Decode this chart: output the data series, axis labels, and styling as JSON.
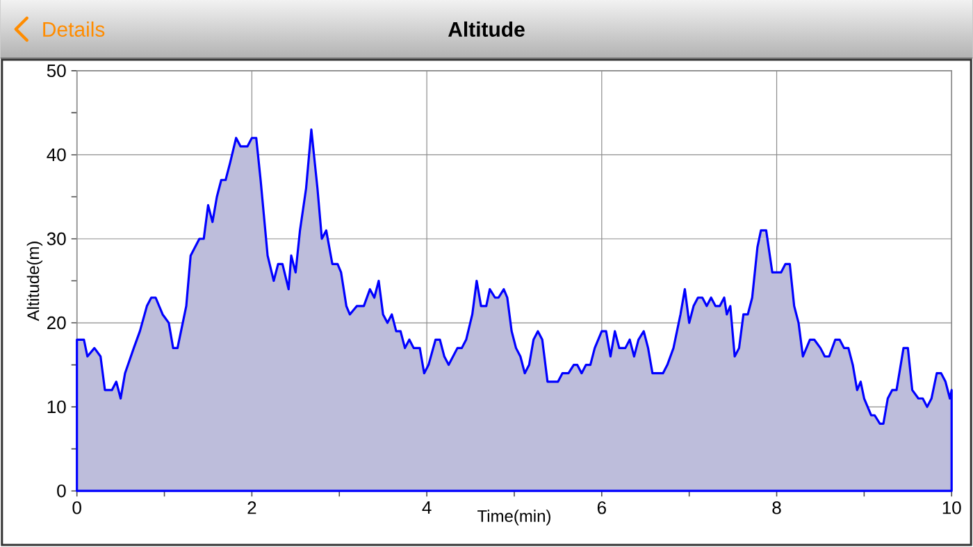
{
  "chart_data": {
    "type": "area",
    "title": "Altitude",
    "xlabel": "Time(min)",
    "ylabel": "Altitude(m)",
    "annotations": [
      "Details"
    ],
    "xlim": [
      0,
      10
    ],
    "ylim": [
      0,
      50
    ],
    "xticks": [
      0,
      {
        "value": 1,
        "label": null
      },
      2,
      {
        "value": 3,
        "label": null
      },
      4,
      {
        "value": 5,
        "label": null
      },
      6,
      {
        "value": 7,
        "label": null
      },
      8,
      {
        "value": 9,
        "label": null
      },
      10
    ],
    "yticks": [
      0,
      {
        "value": 5,
        "label": null
      },
      10,
      {
        "value": 15,
        "label": null
      },
      20,
      {
        "value": 25,
        "label": null
      },
      30,
      {
        "value": 35,
        "label": null
      },
      40,
      {
        "value": 45,
        "label": null
      },
      50
    ],
    "grid": true,
    "series": [
      {
        "color": "#0000ff",
        "x": [
          0,
          0.08,
          0.12,
          0.2,
          0.27,
          0.32,
          0.4,
          0.45,
          0.5,
          0.55,
          0.65,
          0.72,
          0.8,
          0.85,
          0.9,
          0.98,
          1.05,
          1.1,
          1.15,
          1.25,
          1.3,
          1.4,
          1.45,
          1.5,
          1.55,
          1.6,
          1.65,
          1.7,
          1.75,
          1.82,
          1.87,
          1.95,
          2.0,
          2.05,
          2.1,
          2.18,
          2.25,
          2.3,
          2.35,
          2.42,
          2.45,
          2.5,
          2.55,
          2.62,
          2.68,
          2.75,
          2.8,
          2.85,
          2.92,
          2.98,
          3.02,
          3.08,
          3.12,
          3.2,
          3.28,
          3.35,
          3.4,
          3.45,
          3.5,
          3.55,
          3.6,
          3.65,
          3.7,
          3.75,
          3.8,
          3.85,
          3.92,
          3.97,
          4.02,
          4.1,
          4.15,
          4.2,
          4.25,
          4.35,
          4.4,
          4.45,
          4.52,
          4.57,
          4.62,
          4.68,
          4.72,
          4.78,
          4.82,
          4.88,
          4.92,
          4.97,
          5.02,
          5.07,
          5.12,
          5.17,
          5.22,
          5.27,
          5.32,
          5.38,
          5.45,
          5.5,
          5.55,
          5.62,
          5.68,
          5.72,
          5.77,
          5.82,
          5.87,
          5.92,
          6.0,
          6.05,
          6.1,
          6.15,
          6.2,
          6.27,
          6.32,
          6.37,
          6.42,
          6.48,
          6.53,
          6.58,
          6.65,
          6.7,
          6.75,
          6.82,
          6.9,
          6.95,
          7.0,
          7.05,
          7.1,
          7.15,
          7.2,
          7.25,
          7.3,
          7.35,
          7.4,
          7.43,
          7.47,
          7.52,
          7.57,
          7.62,
          7.67,
          7.72,
          7.78,
          7.82,
          7.88,
          7.95,
          8.0,
          8.05,
          8.1,
          8.15,
          8.2,
          8.25,
          8.3,
          8.38,
          8.43,
          8.5,
          8.55,
          8.6,
          8.67,
          8.72,
          8.77,
          8.82,
          8.87,
          8.92,
          8.96,
          9.0,
          9.08,
          9.12,
          9.18,
          9.22,
          9.27,
          9.32,
          9.37,
          9.45,
          9.5,
          9.55,
          9.62,
          9.67,
          9.72,
          9.77,
          9.83,
          9.88,
          9.93,
          9.98,
          10
        ],
        "values": [
          18,
          18,
          16,
          17,
          16,
          12,
          12,
          13,
          11,
          14,
          17,
          19,
          22,
          23,
          23,
          21,
          20,
          17,
          17,
          22,
          28,
          30,
          30,
          34,
          32,
          35,
          37,
          37,
          39,
          42,
          41,
          41,
          42,
          42,
          37,
          28,
          25,
          27,
          27,
          24,
          28,
          26,
          31,
          36,
          43,
          36,
          30,
          31,
          27,
          27,
          26,
          22,
          21,
          22,
          22,
          24,
          23,
          25,
          21,
          20,
          21,
          19,
          19,
          17,
          18,
          17,
          17,
          14,
          15,
          18,
          18,
          16,
          15,
          17,
          17,
          18,
          21,
          25,
          22,
          22,
          24,
          23,
          23,
          24,
          23,
          19,
          17,
          16,
          14,
          15,
          18,
          19,
          18,
          13,
          13,
          13,
          14,
          14,
          15,
          15,
          14,
          15,
          15,
          17,
          19,
          19,
          16,
          19,
          17,
          17,
          18,
          16,
          18,
          19,
          17,
          14,
          14,
          14,
          15,
          17,
          21,
          24,
          20,
          22,
          23,
          23,
          22,
          23,
          22,
          22,
          23,
          21,
          22,
          16,
          17,
          21,
          21,
          23,
          29,
          31,
          31,
          26,
          26,
          26,
          27,
          27,
          22,
          20,
          16,
          18,
          18,
          17,
          16,
          16,
          18,
          18,
          17,
          17,
          15,
          12,
          13,
          11,
          9,
          9,
          8,
          8,
          11,
          12,
          12,
          17,
          17,
          12,
          11,
          11,
          10,
          11,
          14,
          14,
          13,
          11,
          12
        ]
      }
    ]
  }
}
